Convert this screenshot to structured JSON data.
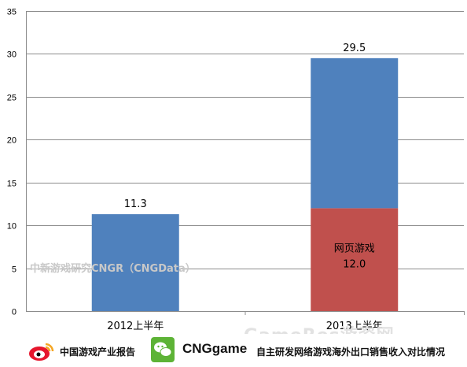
{
  "chart_data": {
    "type": "bar",
    "stacked": true,
    "categories": [
      "2012上半年",
      "2013上半年"
    ],
    "series": [
      {
        "name": "网页游戏",
        "values": [
          0,
          12.0
        ],
        "color": "#c0504d"
      },
      {
        "values": [
          11.3,
          17.5
        ],
        "color": "#4f81bd"
      }
    ],
    "totals": [
      11.3,
      29.5
    ],
    "segment_label": {
      "text": "网页游戏",
      "value": "12.0"
    },
    "total_labels": [
      "11.3",
      "29.5"
    ],
    "y_ticks": [
      0,
      5,
      10,
      15,
      20,
      25,
      30,
      35
    ],
    "ylim": [
      0,
      35
    ],
    "grid": true
  },
  "watermark": "中新游戏研究CNGR（CNGData）",
  "watermark2": "GameRes游资网",
  "footer": {
    "left_text": "中国游戏产业报告",
    "brand": "CNGgame",
    "right_text": "自主研发网络游戏海外出口销售收入对比情况"
  },
  "icons": {
    "weibo": "weibo-icon",
    "wechat": "wechat-icon"
  }
}
